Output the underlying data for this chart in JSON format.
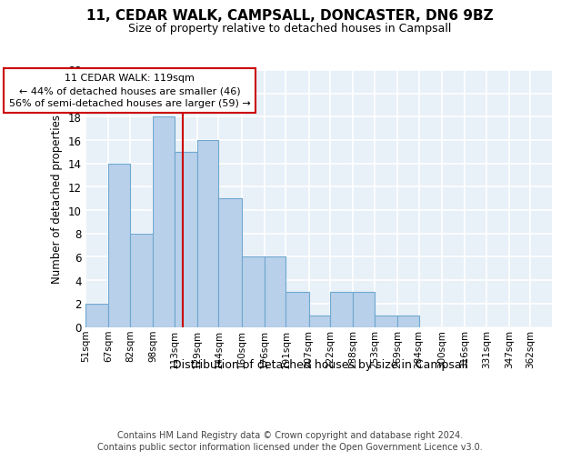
{
  "title": "11, CEDAR WALK, CAMPSALL, DONCASTER, DN6 9BZ",
  "subtitle": "Size of property relative to detached houses in Campsall",
  "xlabel": "Distribution of detached houses by size in Campsall",
  "ylabel": "Number of detached properties",
  "categories": [
    "51sqm",
    "67sqm",
    "82sqm",
    "98sqm",
    "113sqm",
    "129sqm",
    "144sqm",
    "160sqm",
    "176sqm",
    "191sqm",
    "207sqm",
    "222sqm",
    "238sqm",
    "253sqm",
    "269sqm",
    "284sqm",
    "300sqm",
    "316sqm",
    "331sqm",
    "347sqm",
    "362sqm"
  ],
  "values": [
    2,
    14,
    8,
    18,
    15,
    16,
    11,
    6,
    6,
    3,
    1,
    3,
    3,
    1,
    1,
    0,
    0,
    0,
    0,
    0,
    0
  ],
  "bar_color": "#b8d0ea",
  "bar_edge_color": "#6fa8d0",
  "reference_line_x": 119,
  "bin_edges": [
    51,
    67,
    82,
    98,
    113,
    129,
    144,
    160,
    176,
    191,
    207,
    222,
    238,
    253,
    269,
    284,
    300,
    316,
    331,
    347,
    362,
    377
  ],
  "annotation_text": "11 CEDAR WALK: 119sqm\n← 44% of detached houses are smaller (46)\n56% of semi-detached houses are larger (59) →",
  "annotation_box_color": "#ffffff",
  "annotation_border_color": "#cc0000",
  "ref_line_color": "#cc0000",
  "ylim": [
    0,
    22
  ],
  "yticks": [
    0,
    2,
    4,
    6,
    8,
    10,
    12,
    14,
    16,
    18,
    20,
    22
  ],
  "footer_line1": "Contains HM Land Registry data © Crown copyright and database right 2024.",
  "footer_line2": "Contains public sector information licensed under the Open Government Licence v3.0.",
  "bg_color": "#e8f0f8",
  "grid_color": "#ffffff"
}
